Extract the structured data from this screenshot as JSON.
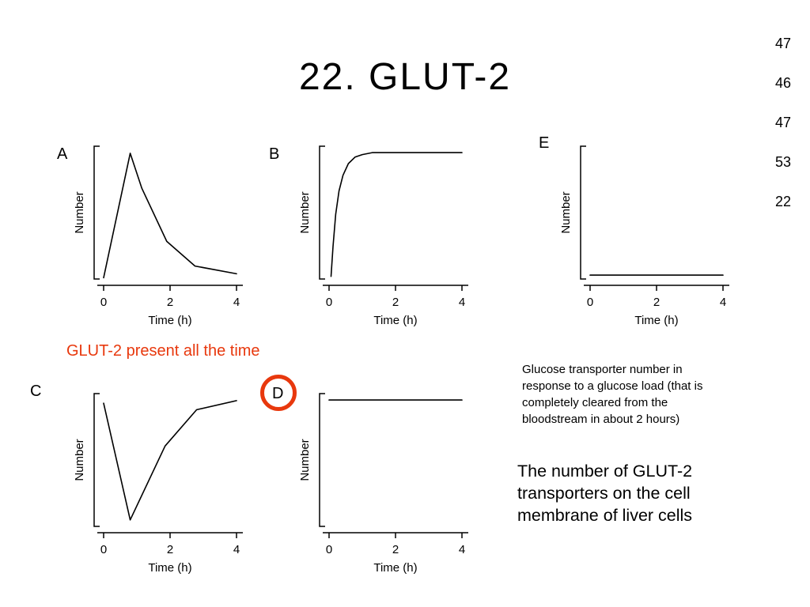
{
  "slide": {
    "title": "22. GLUT-2",
    "side_numbers": [
      "47",
      "46",
      "47",
      "53",
      "22"
    ],
    "annotation": "GLUT-2 present all the time",
    "caption_small": "Glucose transporter number in response to a glucose load (that is completely cleared from the bloodstream in about 2 hours)",
    "caption_large": "The number of GLUT-2 transporters on the cell membrane of liver cells",
    "colors": {
      "accent_red": "#e8380d",
      "curve": "#000000",
      "background": "#ffffff"
    }
  },
  "chart_data": [
    {
      "id": "A",
      "type": "line",
      "label": "A",
      "xlabel": "Time (h)",
      "ylabel": "Number",
      "xlim": [
        0,
        4
      ],
      "ylim": [
        0,
        1
      ],
      "x_ticks": [
        0,
        2,
        4
      ],
      "x_tick_labels": [
        "0",
        "2",
        "4"
      ],
      "grid": false,
      "circled": false,
      "points": [
        [
          0,
          0.01
        ],
        [
          0.8,
          0.97
        ],
        [
          1.15,
          0.7
        ],
        [
          1.9,
          0.29
        ],
        [
          2.75,
          0.1
        ],
        [
          4,
          0.04
        ]
      ]
    },
    {
      "id": "B",
      "type": "line",
      "label": "B",
      "xlabel": "Time (h)",
      "ylabel": "Number",
      "xlim": [
        0,
        4
      ],
      "ylim": [
        0,
        1
      ],
      "x_ticks": [
        0,
        2,
        4
      ],
      "x_tick_labels": [
        "0",
        "2",
        "4"
      ],
      "grid": false,
      "circled": false,
      "points": [
        [
          0.06,
          0.02
        ],
        [
          0.12,
          0.25
        ],
        [
          0.2,
          0.5
        ],
        [
          0.3,
          0.68
        ],
        [
          0.42,
          0.8
        ],
        [
          0.58,
          0.89
        ],
        [
          0.78,
          0.94
        ],
        [
          1.0,
          0.96
        ],
        [
          1.3,
          0.975
        ],
        [
          4,
          0.975
        ]
      ]
    },
    {
      "id": "E",
      "type": "line",
      "label": "E",
      "xlabel": "Time (h)",
      "ylabel": "Number",
      "xlim": [
        0,
        4
      ],
      "ylim": [
        0,
        1
      ],
      "x_ticks": [
        0,
        2,
        4
      ],
      "x_tick_labels": [
        "0",
        "2",
        "4"
      ],
      "grid": false,
      "circled": false,
      "points": [
        [
          0,
          0.03
        ],
        [
          4,
          0.03
        ]
      ]
    },
    {
      "id": "C",
      "type": "line",
      "label": "C",
      "xlabel": "Time (h)",
      "ylabel": "Number",
      "xlim": [
        0,
        4
      ],
      "ylim": [
        0,
        1
      ],
      "x_ticks": [
        0,
        2,
        4
      ],
      "x_tick_labels": [
        "0",
        "2",
        "4"
      ],
      "grid": false,
      "circled": false,
      "points": [
        [
          0,
          0.95
        ],
        [
          0.8,
          0.05
        ],
        [
          1.85,
          0.62
        ],
        [
          2.8,
          0.9
        ],
        [
          4,
          0.97
        ]
      ]
    },
    {
      "id": "D",
      "type": "line",
      "label": "D",
      "xlabel": "Time (h)",
      "ylabel": "Number",
      "xlim": [
        0,
        4
      ],
      "ylim": [
        0,
        1
      ],
      "x_ticks": [
        0,
        2,
        4
      ],
      "x_tick_labels": [
        "0",
        "2",
        "4"
      ],
      "grid": false,
      "circled": true,
      "points": [
        [
          0,
          0.975
        ],
        [
          4,
          0.975
        ]
      ]
    }
  ]
}
